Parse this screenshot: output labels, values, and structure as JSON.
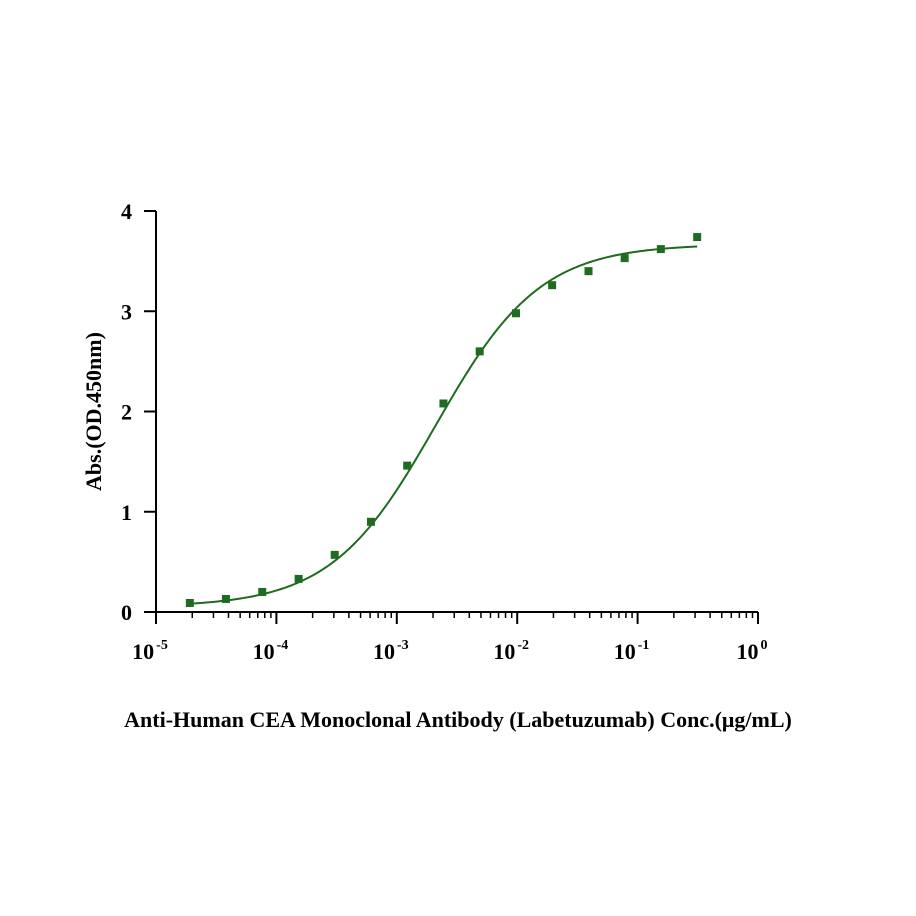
{
  "chart_data": {
    "type": "scatter",
    "title": "",
    "xlabel": "Anti-Human CEA Monoclonal Antibody (Labetuzumab) Conc.(μg/mL)",
    "ylabel": "Abs.(OD.450nm)",
    "x_scale": "log",
    "xlim": [
      1e-05,
      1
    ],
    "ylim": [
      0,
      4
    ],
    "grid": false,
    "legend": "none",
    "colors": {
      "series": "#1f6b1f",
      "axis": "#000000"
    },
    "x_ticks": [
      {
        "value": 1e-05,
        "base": "10",
        "exp": "-5"
      },
      {
        "value": 0.0001,
        "base": "10",
        "exp": "-4"
      },
      {
        "value": 0.001,
        "base": "10",
        "exp": "-3"
      },
      {
        "value": 0.01,
        "base": "10",
        "exp": "-2"
      },
      {
        "value": 0.1,
        "base": "10",
        "exp": "-1"
      },
      {
        "value": 1,
        "base": "10",
        "exp": "0"
      }
    ],
    "y_ticks": [
      {
        "value": 0,
        "label": "0"
      },
      {
        "value": 1,
        "label": "1"
      },
      {
        "value": 2,
        "label": "2"
      },
      {
        "value": 3,
        "label": "3"
      },
      {
        "value": 4,
        "label": "4"
      }
    ],
    "series": [
      {
        "marker": "square",
        "x": [
          1.91e-05,
          3.81e-05,
          7.63e-05,
          0.000153,
          0.000305,
          0.00061,
          0.00122,
          0.00244,
          0.00488,
          0.00977,
          0.0195,
          0.0391,
          0.0781,
          0.156,
          0.3125
        ],
        "y": [
          0.09,
          0.13,
          0.2,
          0.33,
          0.57,
          0.9,
          1.46,
          2.08,
          2.6,
          2.98,
          3.26,
          3.4,
          3.53,
          3.62,
          3.74
        ]
      }
    ],
    "fit": {
      "type": "line",
      "model": "4PL",
      "bottom": 0.05,
      "top": 3.67,
      "ec50": 0.0021,
      "hill": 1.0,
      "x_range": [
        1.91e-05,
        0.3125
      ]
    }
  }
}
